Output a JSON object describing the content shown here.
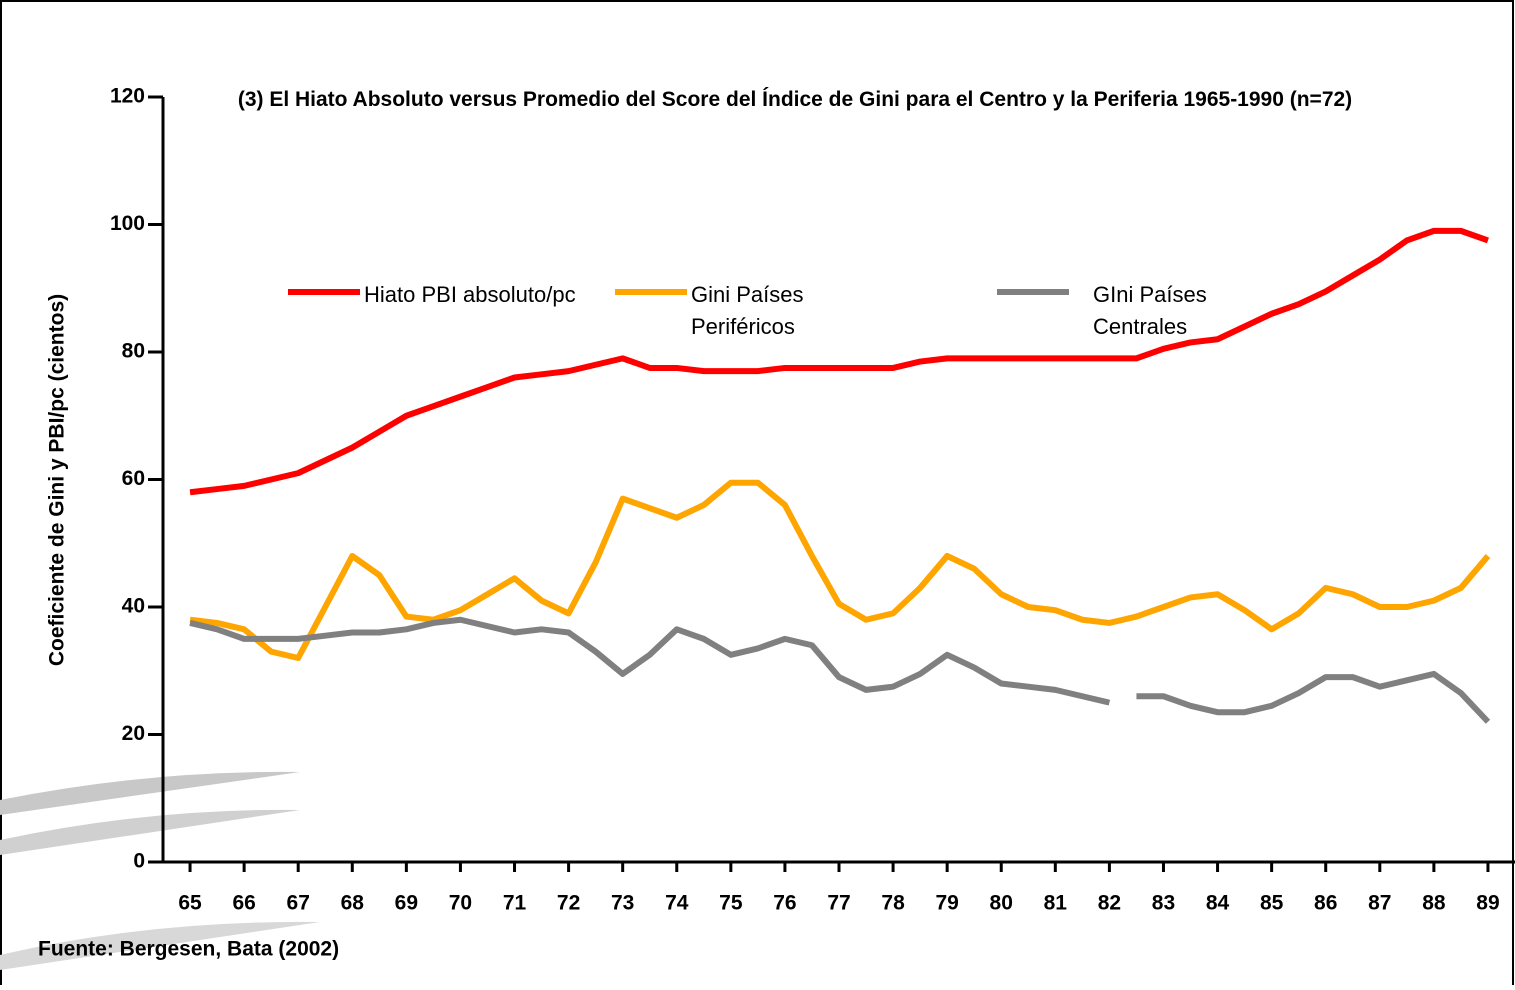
{
  "chart_data": {
    "type": "line",
    "title": "(3) El Hiato Absoluto versus Promedio del Score del Índice de Gini para el Centro y la Periferia 1965-1990 (n=72)",
    "y_label": "Coeficiente de Gini y PBI/pc (cientos)",
    "source": "Fuente: Bergesen, Bata (2002)",
    "x": [
      65,
      65.5,
      66,
      66.5,
      67,
      67.5,
      68,
      68.5,
      69,
      69.5,
      70,
      70.5,
      71,
      71.5,
      72,
      72.5,
      73,
      73.5,
      74,
      74.5,
      75,
      75.5,
      76,
      76.5,
      77,
      77.5,
      78,
      78.5,
      79,
      79.5,
      80,
      80.5,
      81,
      81.5,
      82,
      82.25,
      82.5,
      83,
      83.5,
      84,
      84.5,
      85,
      85.5,
      86,
      86.5,
      87,
      87.5,
      88,
      88.5,
      89
    ],
    "xlim": [
      64.5,
      89.5
    ],
    "xticks": [
      65,
      66,
      67,
      68,
      69,
      70,
      71,
      72,
      73,
      74,
      75,
      76,
      77,
      78,
      79,
      80,
      81,
      82,
      83,
      84,
      85,
      86,
      87,
      88,
      89
    ],
    "ylim": [
      0,
      120
    ],
    "yticks": [
      0,
      20,
      40,
      60,
      80,
      100,
      120
    ],
    "series": [
      {
        "name": "Hiato PBI absoluto/pc",
        "color": "#ff0000",
        "values": [
          58,
          58.5,
          59,
          60,
          61,
          63,
          65,
          67.5,
          70,
          71.5,
          73,
          74.5,
          76,
          76.5,
          77,
          78,
          79,
          77.5,
          77.5,
          77,
          77,
          77,
          77.5,
          77.5,
          77.5,
          77.5,
          77.5,
          78.5,
          79,
          79,
          79,
          79,
          79,
          79,
          79,
          79,
          79,
          80.5,
          81.5,
          82,
          84,
          86,
          87.5,
          89.5,
          92,
          94.5,
          97.5,
          99,
          99,
          97.5
        ]
      },
      {
        "name": "Gini Países Periféricos",
        "color": "#ffa500",
        "values": [
          38,
          37.5,
          36.5,
          33,
          32,
          40,
          48,
          45,
          38.5,
          38,
          39.5,
          42,
          44.5,
          41,
          39,
          47,
          57,
          55.5,
          54,
          56,
          59.5,
          59.5,
          56,
          48,
          40.5,
          38,
          39,
          43,
          48,
          46,
          42,
          40,
          39.5,
          38,
          37.5,
          38,
          38.5,
          40,
          41.5,
          42,
          39.5,
          36.5,
          39,
          43,
          42,
          40,
          40,
          41,
          43,
          48
        ]
      },
      {
        "name": "GIni Países Centrales",
        "color": "#808080",
        "values": [
          37.5,
          36.5,
          35,
          35,
          35,
          35.5,
          36,
          36,
          36.5,
          37.5,
          38,
          37,
          36,
          36.5,
          36,
          33,
          29.5,
          32.5,
          36.5,
          35,
          32.5,
          33.5,
          35,
          34,
          29,
          27,
          27.5,
          29.5,
          32.5,
          30.5,
          28,
          27.5,
          27,
          26,
          25,
          null,
          26,
          26,
          24.5,
          23.5,
          23.5,
          24.5,
          26.5,
          29,
          29,
          27.5,
          28.5,
          29.5,
          26.5,
          22
        ]
      }
    ]
  }
}
